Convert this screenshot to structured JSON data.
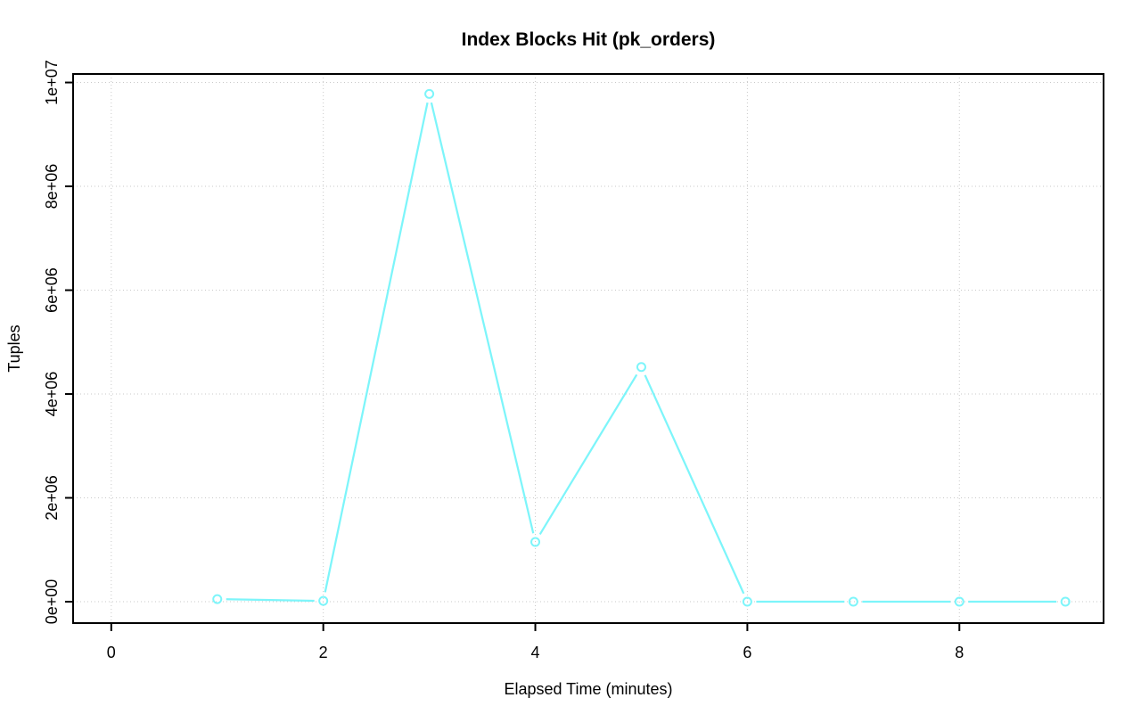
{
  "title": "Index Blocks Hit (pk_orders)",
  "chart_data": {
    "type": "line",
    "title": "Index Blocks Hit (pk_orders)",
    "xlabel": "Elapsed Time (minutes)",
    "ylabel": "Tuples",
    "x": [
      1,
      2,
      3,
      4,
      5,
      6,
      7,
      8,
      9
    ],
    "y": [
      50000,
      15000,
      9780000,
      1150000,
      4520000,
      0,
      0,
      0,
      0
    ],
    "xlim": [
      -0.36,
      9.36
    ],
    "ylim": [
      -412000,
      10164000
    ],
    "x_ticks": [
      0,
      2,
      4,
      6,
      8
    ],
    "x_tick_labels": [
      "0",
      "2",
      "4",
      "6",
      "8"
    ],
    "y_ticks": [
      0,
      2000000,
      4000000,
      6000000,
      8000000,
      10000000
    ],
    "y_tick_labels": [
      "0e+00",
      "2e+06",
      "4e+06",
      "6e+06",
      "8e+06",
      "1e+07"
    ],
    "grid": true,
    "grid_style": "dotted",
    "legend_position": "none",
    "marker": "open-circle",
    "line_style": "points-and-segments-with-gaps",
    "colors": {
      "line": "#7df5fa",
      "grid": "#c9c9c9",
      "axis": "#000000",
      "background": "#ffffff"
    }
  }
}
